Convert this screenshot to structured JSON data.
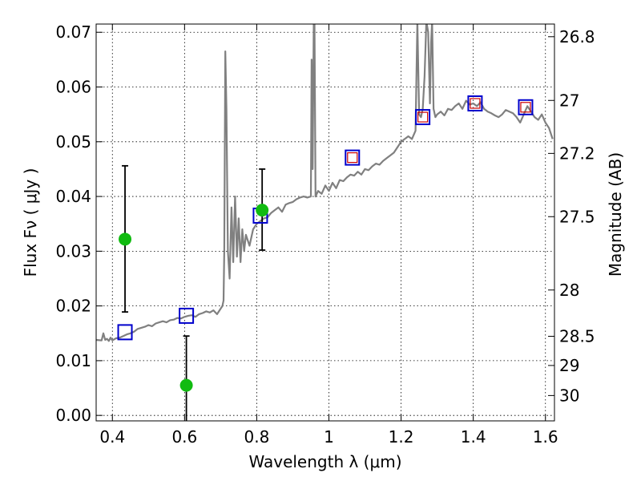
{
  "chart_data": {
    "type": "line",
    "xlabel": "Wavelength  λ (μm)",
    "ylabel": "Flux  Fν  ( μJy )",
    "y2label": "Magnitude (AB)",
    "xlim": [
      0.355,
      1.625
    ],
    "ylim": [
      -0.001,
      0.0715
    ],
    "xticks": [
      0.4,
      0.6,
      0.8,
      1.0,
      1.2,
      1.4,
      1.6
    ],
    "xtick_labels": [
      "0.4",
      "0.6",
      "0.8",
      "1",
      "1.2",
      "1.4",
      "1.6"
    ],
    "yticks": [
      0.0,
      0.01,
      0.02,
      0.03,
      0.04,
      0.05,
      0.06,
      0.07
    ],
    "ytick_labels": [
      "0.00",
      "0.01",
      "0.02",
      "0.03",
      "0.04",
      "0.05",
      "0.06",
      "0.07"
    ],
    "y2ticks_mag": [
      26.8,
      27,
      27.2,
      27.5,
      28,
      28.5,
      29,
      30
    ],
    "y2tick_labels": [
      "26.8",
      "27",
      "27.2",
      "27.5",
      "28",
      "28.5",
      "29",
      "30"
    ],
    "grid": true,
    "series": [
      {
        "kind": "spectrum-line",
        "color": "#808080",
        "x": [
          0.355,
          0.37,
          0.375,
          0.38,
          0.385,
          0.39,
          0.395,
          0.4,
          0.41,
          0.42,
          0.43,
          0.44,
          0.45,
          0.46,
          0.47,
          0.48,
          0.49,
          0.5,
          0.51,
          0.52,
          0.53,
          0.54,
          0.55,
          0.56,
          0.57,
          0.58,
          0.59,
          0.6,
          0.61,
          0.62,
          0.63,
          0.64,
          0.65,
          0.66,
          0.67,
          0.68,
          0.69,
          0.7,
          0.705,
          0.708,
          0.71,
          0.713,
          0.716,
          0.72,
          0.725,
          0.73,
          0.735,
          0.74,
          0.745,
          0.75,
          0.755,
          0.76,
          0.765,
          0.77,
          0.78,
          0.79,
          0.8,
          0.81,
          0.82,
          0.83,
          0.84,
          0.85,
          0.86,
          0.87,
          0.88,
          0.89,
          0.9,
          0.91,
          0.92,
          0.93,
          0.94,
          0.95,
          0.952,
          0.955,
          0.958,
          0.96,
          0.963,
          0.97,
          0.98,
          0.99,
          1.0,
          1.01,
          1.02,
          1.03,
          1.04,
          1.05,
          1.06,
          1.07,
          1.08,
          1.09,
          1.1,
          1.11,
          1.12,
          1.13,
          1.14,
          1.15,
          1.16,
          1.17,
          1.18,
          1.19,
          1.2,
          1.21,
          1.22,
          1.23,
          1.24,
          1.245,
          1.25,
          1.255,
          1.26,
          1.265,
          1.27,
          1.275,
          1.28,
          1.283,
          1.286,
          1.29,
          1.295,
          1.3,
          1.31,
          1.32,
          1.33,
          1.34,
          1.35,
          1.36,
          1.37,
          1.38,
          1.39,
          1.4,
          1.41,
          1.42,
          1.43,
          1.44,
          1.45,
          1.46,
          1.47,
          1.48,
          1.49,
          1.5,
          1.51,
          1.52,
          1.53,
          1.54,
          1.55,
          1.56,
          1.57,
          1.58,
          1.59,
          1.6,
          1.61,
          1.62
        ],
        "y": [
          0.0138,
          0.0137,
          0.015,
          0.0138,
          0.014,
          0.0136,
          0.0142,
          0.0137,
          0.0141,
          0.0142,
          0.0145,
          0.0148,
          0.015,
          0.0153,
          0.0158,
          0.016,
          0.0162,
          0.0165,
          0.0163,
          0.0168,
          0.017,
          0.0172,
          0.017,
          0.0174,
          0.0175,
          0.0178,
          0.0177,
          0.018,
          0.0182,
          0.0183,
          0.018,
          0.0185,
          0.0187,
          0.019,
          0.0188,
          0.0192,
          0.0185,
          0.0195,
          0.02,
          0.021,
          0.03,
          0.0665,
          0.056,
          0.03,
          0.025,
          0.038,
          0.028,
          0.04,
          0.029,
          0.036,
          0.028,
          0.034,
          0.03,
          0.033,
          0.031,
          0.034,
          0.035,
          0.0355,
          0.036,
          0.0362,
          0.037,
          0.0375,
          0.038,
          0.0372,
          0.0385,
          0.0388,
          0.039,
          0.0395,
          0.0398,
          0.04,
          0.0398,
          0.04,
          0.065,
          0.045,
          0.072,
          0.072,
          0.04,
          0.041,
          0.0405,
          0.042,
          0.041,
          0.0425,
          0.0415,
          0.043,
          0.0428,
          0.0435,
          0.044,
          0.0438,
          0.0445,
          0.044,
          0.045,
          0.0448,
          0.0455,
          0.046,
          0.0458,
          0.0465,
          0.047,
          0.0475,
          0.048,
          0.049,
          0.05,
          0.0505,
          0.051,
          0.0505,
          0.052,
          0.072,
          0.055,
          0.0545,
          0.056,
          0.062,
          0.072,
          0.07,
          0.057,
          0.068,
          0.072,
          0.056,
          0.0545,
          0.055,
          0.0555,
          0.0548,
          0.056,
          0.0558,
          0.0565,
          0.057,
          0.056,
          0.0575,
          0.0568,
          0.057,
          0.0565,
          0.0572,
          0.056,
          0.0555,
          0.0552,
          0.0548,
          0.0545,
          0.055,
          0.0558,
          0.0555,
          0.0552,
          0.0545,
          0.0535,
          0.055,
          0.0565,
          0.0555,
          0.0545,
          0.054,
          0.055,
          0.0535,
          0.0525,
          0.0505
        ]
      },
      {
        "kind": "model-photometry",
        "marker": "open-square",
        "color": "#0000cc",
        "x": [
          0.435,
          0.605,
          0.81,
          1.065,
          1.26,
          1.405,
          1.545
        ],
        "y": [
          0.0152,
          0.0182,
          0.0365,
          0.0471,
          0.0545,
          0.057,
          0.0563
        ]
      },
      {
        "kind": "observed-photometry",
        "marker": "open-square",
        "color": "#cc0000",
        "x": [
          1.065,
          1.26,
          1.405,
          1.545
        ],
        "y": [
          0.0471,
          0.0545,
          0.057,
          0.0563
        ]
      },
      {
        "kind": "observed-photometry-with-errors",
        "marker": "filled-circle",
        "color": "#11bb11",
        "x": [
          0.435,
          0.605,
          0.815
        ],
        "y": [
          0.0322,
          0.0055,
          0.0375
        ],
        "yerr_low": [
          0.0133,
          0.016,
          0.0073
        ],
        "yerr_high": [
          0.0134,
          0.009,
          0.0075
        ]
      }
    ]
  }
}
